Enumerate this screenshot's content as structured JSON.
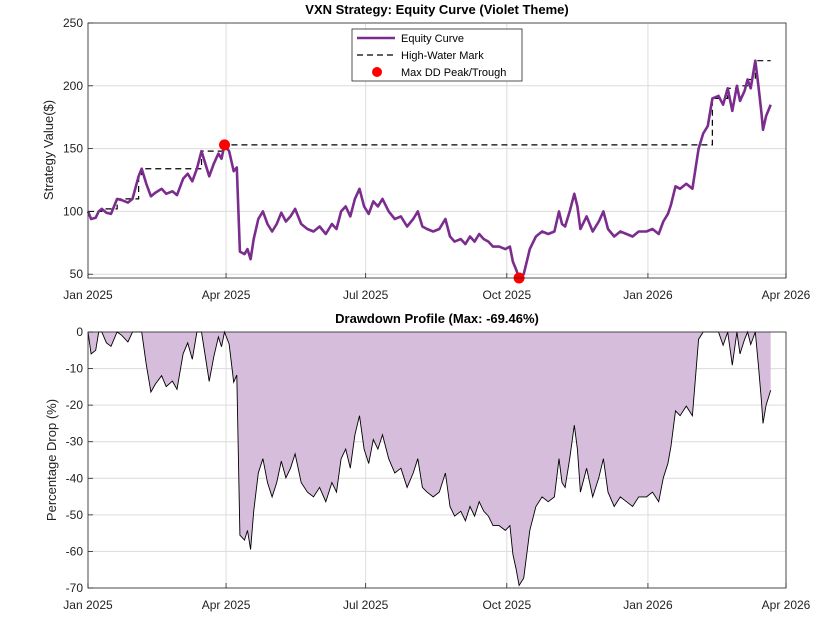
{
  "chart_data": [
    {
      "type": "line",
      "title": "VXN Strategy: Equity Curve (Violet Theme)",
      "xlabel": "",
      "ylabel": "Strategy Value($)",
      "xlim": [
        "2025-01-01",
        "2026-04-01"
      ],
      "ylim": [
        47,
        250
      ],
      "xticks": [
        "Jan 2025",
        "Apr 2025",
        "Jul 2025",
        "Oct 2025",
        "Jan 2026",
        "Apr 2026"
      ],
      "yticks": [
        "50",
        "100",
        "150",
        "200",
        "250"
      ],
      "grid": true,
      "legend_position": "top-center",
      "legend": [
        "Equity Curve",
        "High-Water Mark",
        "Max DD Peak/Trough"
      ],
      "series": [
        {
          "name": "Equity Curve",
          "color": "#7B2D8E",
          "points": [
            [
              "2025-01-01",
              100
            ],
            [
              "2025-01-03",
              94
            ],
            [
              "2025-01-06",
              95
            ],
            [
              "2025-01-08",
              100
            ],
            [
              "2025-01-10",
              102
            ],
            [
              "2025-01-13",
              99
            ],
            [
              "2025-01-16",
              98
            ],
            [
              "2025-01-20",
              110
            ],
            [
              "2025-01-23",
              109
            ],
            [
              "2025-01-27",
              107
            ],
            [
              "2025-01-30",
              110
            ],
            [
              "2025-02-03",
              128
            ],
            [
              "2025-02-05",
              134
            ],
            [
              "2025-02-08",
              122
            ],
            [
              "2025-02-11",
              112
            ],
            [
              "2025-02-14",
              115
            ],
            [
              "2025-02-18",
              118
            ],
            [
              "2025-02-21",
              114
            ],
            [
              "2025-02-25",
              116
            ],
            [
              "2025-02-28",
              113
            ],
            [
              "2025-03-04",
              126
            ],
            [
              "2025-03-07",
              130
            ],
            [
              "2025-03-10",
              124
            ],
            [
              "2025-03-13",
              134
            ],
            [
              "2025-03-16",
              148
            ],
            [
              "2025-03-18",
              140
            ],
            [
              "2025-03-21",
              128
            ],
            [
              "2025-03-24",
              138
            ],
            [
              "2025-03-27",
              146
            ],
            [
              "2025-03-29",
              142
            ],
            [
              "2025-03-31",
              153
            ],
            [
              "2025-04-03",
              148
            ],
            [
              "2025-04-06",
              132
            ],
            [
              "2025-04-08",
              135
            ],
            [
              "2025-04-10",
              68
            ],
            [
              "2025-04-13",
              66
            ],
            [
              "2025-04-15",
              70
            ],
            [
              "2025-04-17",
              62
            ],
            [
              "2025-04-19",
              78
            ],
            [
              "2025-04-22",
              94
            ],
            [
              "2025-04-25",
              100
            ],
            [
              "2025-04-28",
              90
            ],
            [
              "2025-05-01",
              84
            ],
            [
              "2025-05-04",
              90
            ],
            [
              "2025-05-07",
              99
            ],
            [
              "2025-05-10",
              92
            ],
            [
              "2025-05-13",
              96
            ],
            [
              "2025-05-16",
              102
            ],
            [
              "2025-05-20",
              90
            ],
            [
              "2025-05-24",
              86
            ],
            [
              "2025-05-28",
              84
            ],
            [
              "2025-06-01",
              88
            ],
            [
              "2025-06-05",
              82
            ],
            [
              "2025-06-09",
              90
            ],
            [
              "2025-06-12",
              86
            ],
            [
              "2025-06-15",
              100
            ],
            [
              "2025-06-18",
              104
            ],
            [
              "2025-06-21",
              96
            ],
            [
              "2025-06-24",
              110
            ],
            [
              "2025-06-27",
              118
            ],
            [
              "2025-06-30",
              104
            ],
            [
              "2025-07-03",
              98
            ],
            [
              "2025-07-06",
              108
            ],
            [
              "2025-07-09",
              104
            ],
            [
              "2025-07-12",
              110
            ],
            [
              "2025-07-16",
              100
            ],
            [
              "2025-07-20",
              94
            ],
            [
              "2025-07-24",
              96
            ],
            [
              "2025-07-28",
              88
            ],
            [
              "2025-08-01",
              94
            ],
            [
              "2025-08-04",
              100
            ],
            [
              "2025-08-07",
              88
            ],
            [
              "2025-08-10",
              86
            ],
            [
              "2025-08-14",
              84
            ],
            [
              "2025-08-18",
              86
            ],
            [
              "2025-08-22",
              94
            ],
            [
              "2025-08-25",
              80
            ],
            [
              "2025-08-28",
              76
            ],
            [
              "2025-09-01",
              78
            ],
            [
              "2025-09-04",
              74
            ],
            [
              "2025-09-07",
              80
            ],
            [
              "2025-09-10",
              76
            ],
            [
              "2025-09-13",
              82
            ],
            [
              "2025-09-16",
              78
            ],
            [
              "2025-09-19",
              76
            ],
            [
              "2025-09-22",
              72
            ],
            [
              "2025-09-26",
              72
            ],
            [
              "2025-09-30",
              70
            ],
            [
              "2025-10-03",
              72
            ],
            [
              "2025-10-05",
              60
            ],
            [
              "2025-10-07",
              54
            ],
            [
              "2025-10-09",
              47
            ],
            [
              "2025-10-12",
              50
            ],
            [
              "2025-10-16",
              70
            ],
            [
              "2025-10-20",
              80
            ],
            [
              "2025-10-24",
              84
            ],
            [
              "2025-10-28",
              82
            ],
            [
              "2025-11-01",
              84
            ],
            [
              "2025-11-04",
              100
            ],
            [
              "2025-11-06",
              90
            ],
            [
              "2025-11-08",
              88
            ],
            [
              "2025-11-11",
              100
            ],
            [
              "2025-11-14",
              114
            ],
            [
              "2025-11-16",
              104
            ],
            [
              "2025-11-18",
              86
            ],
            [
              "2025-11-22",
              96
            ],
            [
              "2025-11-26",
              84
            ],
            [
              "2025-11-30",
              92
            ],
            [
              "2025-12-03",
              100
            ],
            [
              "2025-12-06",
              86
            ],
            [
              "2025-12-10",
              80
            ],
            [
              "2025-12-14",
              84
            ],
            [
              "2025-12-18",
              82
            ],
            [
              "2025-12-22",
              80
            ],
            [
              "2025-12-26",
              84
            ],
            [
              "2025-12-31",
              84
            ],
            [
              "2026-01-04",
              86
            ],
            [
              "2026-01-08",
              82
            ],
            [
              "2026-01-11",
              92
            ],
            [
              "2026-01-14",
              98
            ],
            [
              "2026-01-16",
              105
            ],
            [
              "2026-01-19",
              120
            ],
            [
              "2026-01-22",
              118
            ],
            [
              "2026-01-26",
              122
            ],
            [
              "2026-01-30",
              118
            ],
            [
              "2026-02-03",
              150
            ],
            [
              "2026-02-06",
              162
            ],
            [
              "2026-02-09",
              168
            ],
            [
              "2026-02-12",
              190
            ],
            [
              "2026-02-16",
              192
            ],
            [
              "2026-02-19",
              185
            ],
            [
              "2026-02-22",
              198
            ],
            [
              "2026-02-25",
              180
            ],
            [
              "2026-02-28",
              200
            ],
            [
              "2026-03-02",
              188
            ],
            [
              "2026-03-05",
              196
            ],
            [
              "2026-03-07",
              205
            ],
            [
              "2026-03-09",
              198
            ],
            [
              "2026-03-12",
              220
            ],
            [
              "2026-03-14",
              200
            ],
            [
              "2026-03-16",
              178
            ],
            [
              "2026-03-17",
              165
            ],
            [
              "2026-03-19",
              176
            ],
            [
              "2026-03-22",
              185
            ]
          ]
        },
        {
          "name": "High-Water Mark",
          "color": "#000000",
          "points": [
            [
              "2025-01-01",
              100
            ],
            [
              "2025-01-10",
              102
            ],
            [
              "2025-01-20",
              110
            ],
            [
              "2025-02-03",
              128
            ],
            [
              "2025-02-05",
              134
            ],
            [
              "2025-03-16",
              148
            ],
            [
              "2025-03-31",
              153
            ],
            [
              "2026-02-03",
              153
            ],
            [
              "2026-02-12",
              190
            ],
            [
              "2026-02-22",
              198
            ],
            [
              "2026-02-28",
              200
            ],
            [
              "2026-03-07",
              205
            ],
            [
              "2026-03-12",
              220
            ],
            [
              "2026-03-22",
              220
            ]
          ]
        },
        {
          "name": "Max DD Peak/Trough",
          "color": "#FF0000",
          "points": [
            [
              "2025-03-31",
              153
            ],
            [
              "2025-10-09",
              47
            ]
          ]
        }
      ]
    },
    {
      "type": "area",
      "title": "Drawdown Profile (Max: -69.46%)",
      "xlabel": "",
      "ylabel": "Percentage Drop (%)",
      "xlim": [
        "2025-01-01",
        "2026-04-01"
      ],
      "ylim": [
        -70,
        0
      ],
      "xticks": [
        "Jan 2025",
        "Apr 2025",
        "Jul 2025",
        "Oct 2025",
        "Jan 2026",
        "Apr 2026"
      ],
      "yticks": [
        "0",
        "-10",
        "-20",
        "-30",
        "-40",
        "-50",
        "-60",
        "-70"
      ],
      "grid": true,
      "fill_color": "#D7BDDC",
      "derived_from": "Equity Curve and High-Water Mark: (equity / peak - 1) x 100"
    }
  ]
}
